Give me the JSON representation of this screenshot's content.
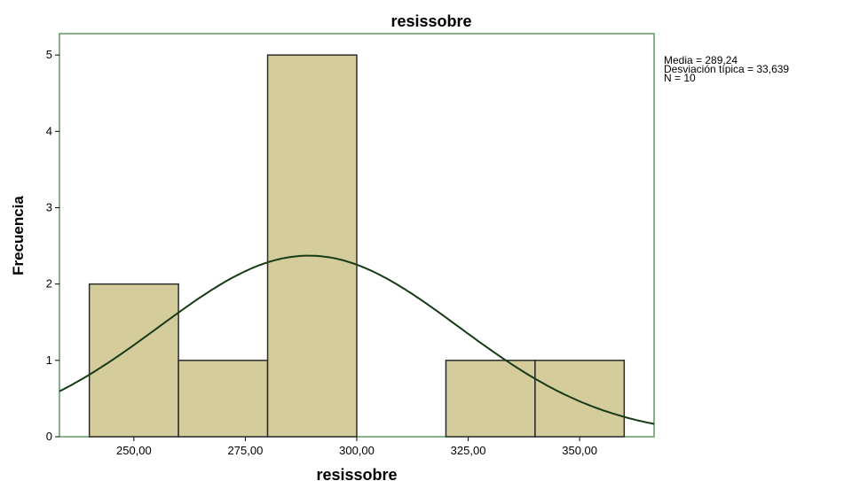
{
  "chart_data": {
    "type": "histogram",
    "title": "resissobre",
    "x_label": "resissobre",
    "y_label": "Frecuencia",
    "bins": [
      240,
      260,
      280,
      300,
      320,
      340,
      360
    ],
    "counts": [
      2,
      1,
      5,
      0,
      1,
      1
    ],
    "color": "#d4cd9b",
    "edge_color": "#2b2b2b",
    "frame_color": "#5e9a5e",
    "curve_color": "#173a17",
    "xlim": [
      233.3,
      366.7
    ],
    "ylim": [
      0,
      5.28
    ],
    "xticks": [
      {
        "value": 250,
        "label": "250,00"
      },
      {
        "value": 275,
        "label": "275,00"
      },
      {
        "value": 300,
        "label": "300,00"
      },
      {
        "value": 325,
        "label": "325,00"
      },
      {
        "value": 350,
        "label": "350,00"
      }
    ],
    "yticks": [
      0,
      1,
      2,
      3,
      4,
      5
    ],
    "stats": [
      {
        "value": 289.24,
        "label": "Media = 289,24"
      },
      {
        "value": 33.639,
        "label": "Desviación típica = 33,639"
      },
      {
        "value": 10,
        "label": "N = 10"
      }
    ]
  }
}
